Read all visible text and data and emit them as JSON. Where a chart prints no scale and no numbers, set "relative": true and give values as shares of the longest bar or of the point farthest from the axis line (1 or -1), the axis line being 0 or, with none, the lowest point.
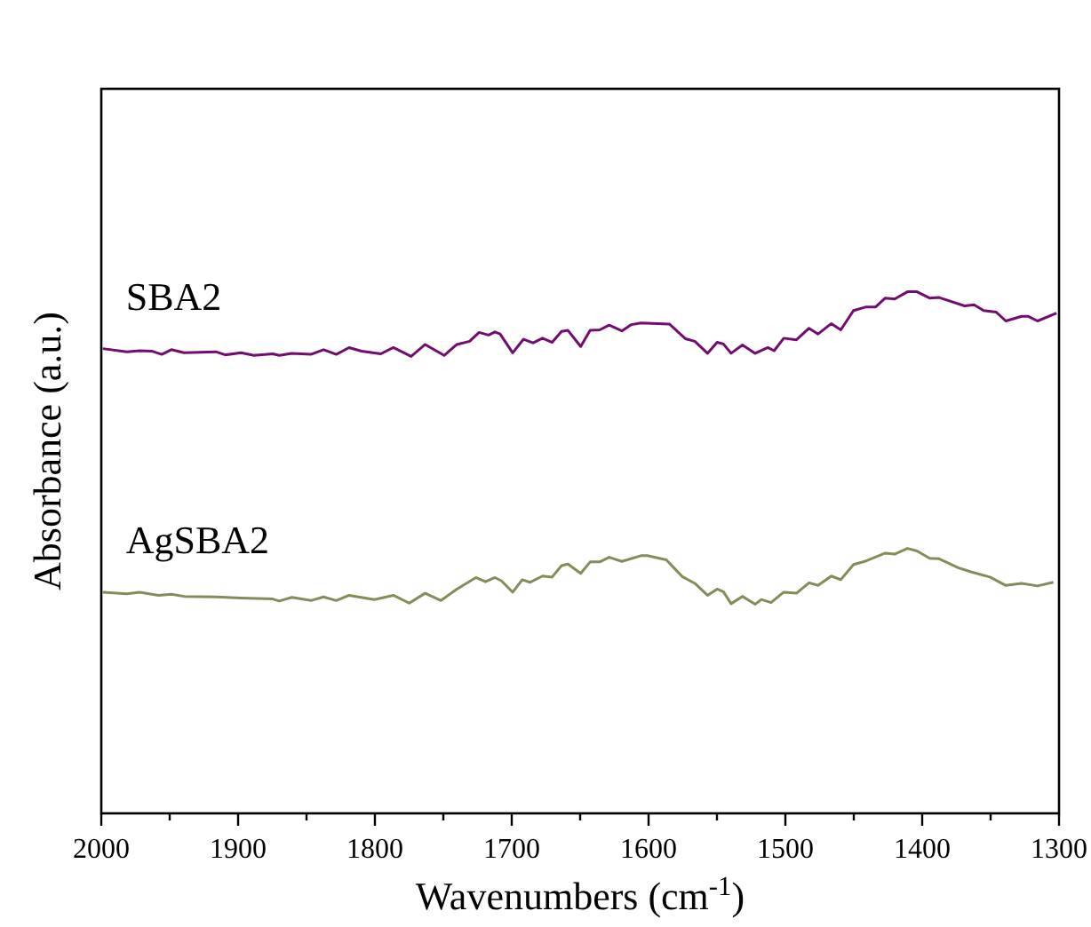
{
  "chart_data": {
    "type": "line",
    "relative": true,
    "xlabel": "Wavenumbers (cm$^{-1}$)",
    "ylabel": "Absorbance (a.u.)",
    "xlim": [
      2000,
      1300
    ],
    "xticks": [
      2000,
      {
        "value": 1950,
        "label": null
      },
      1900,
      {
        "value": 1850,
        "label": null
      },
      1800,
      {
        "value": 1750,
        "label": null
      },
      1700,
      {
        "value": 1650,
        "label": null
      },
      1600,
      {
        "value": 1550,
        "label": null
      },
      1500,
      {
        "value": 1450,
        "label": null
      },
      1400,
      {
        "value": 1350,
        "label": null
      },
      1300
    ],
    "grid": false,
    "marker": "none",
    "line_style": "solid",
    "series": [
      {
        "name": "SBA2",
        "color": "#730c70",
        "x": [
          1998.9,
          1981.3,
          1972.0,
          1962.7,
          1955.8,
          1948.8,
          1939.5,
          1916.3,
          1909.4,
          1897.8,
          1888.5,
          1874.6,
          1870.0,
          1860.7,
          1846.8,
          1837.5,
          1828.2,
          1818.9,
          1809.7,
          1795.7,
          1786.5,
          1773.5,
          1763.3,
          1749.4,
          1740.1,
          1730.8,
          1723.9,
          1716.9,
          1712.3,
          1708.5,
          1699.3,
          1691.4,
          1684.4,
          1677.5,
          1670.5,
          1663.6,
          1658.9,
          1649.6,
          1642.7,
          1635.7,
          1628.8,
          1619.5,
          1612.6,
          1605.6,
          1584.7,
          1573.1,
          1566.2,
          1556.9,
          1549.9,
          1545.3,
          1539.7,
          1531.4,
          1522.1,
          1512.8,
          1508.2,
          1501.2,
          1491.9,
          1482.7,
          1476.1,
          1466.4,
          1459.5,
          1450.2,
          1440.9,
          1434.0,
          1427.0,
          1420.1,
          1410.8,
          1403.8,
          1394.6,
          1387.6,
          1369.0,
          1362.1,
          1355.1,
          1345.9,
          1338.9,
          1327.3,
          1322.7,
          1315.7,
          1301.8
        ],
        "values": [
          0.891,
          0.885,
          0.887,
          0.886,
          0.88,
          0.889,
          0.883,
          0.885,
          0.879,
          0.883,
          0.878,
          0.881,
          0.878,
          0.882,
          0.88,
          0.889,
          0.88,
          0.893,
          0.886,
          0.881,
          0.893,
          0.876,
          0.899,
          0.878,
          0.899,
          0.905,
          0.922,
          0.917,
          0.923,
          0.919,
          0.883,
          0.909,
          0.902,
          0.911,
          0.903,
          0.924,
          0.926,
          0.895,
          0.926,
          0.927,
          0.936,
          0.925,
          0.937,
          0.94,
          0.938,
          0.91,
          0.905,
          0.882,
          0.903,
          0.9,
          0.882,
          0.898,
          0.882,
          0.893,
          0.887,
          0.911,
          0.908,
          0.93,
          0.919,
          0.939,
          0.927,
          0.964,
          0.971,
          0.971,
          0.988,
          0.986,
          1,
          1,
          0.988,
          0.989,
          0.973,
          0.975,
          0.964,
          0.961,
          0.944,
          0.953,
          0.953,
          0.944,
          0.959
        ]
      },
      {
        "name": "AgSBA2",
        "color": "#858c5a",
        "x": [
          1998.9,
          1981.3,
          1972.0,
          1958.1,
          1948.8,
          1939.5,
          1916.3,
          1897.8,
          1874.6,
          1870.0,
          1860.7,
          1846.8,
          1837.5,
          1828.2,
          1818.9,
          1800.4,
          1786.5,
          1774.9,
          1763.3,
          1751.7,
          1740.1,
          1726.2,
          1719.2,
          1712.3,
          1707.6,
          1699.3,
          1692.3,
          1686.7,
          1677.5,
          1670.5,
          1663.6,
          1658.9,
          1649.6,
          1642.7,
          1635.7,
          1628.8,
          1619.5,
          1605.6,
          1600.9,
          1587.0,
          1575.4,
          1566.2,
          1556.9,
          1549.9,
          1545.3,
          1539.7,
          1531.4,
          1522.1,
          1517.5,
          1510.5,
          1501.2,
          1491.9,
          1482.7,
          1476.1,
          1466.4,
          1459.5,
          1450.2,
          1440.9,
          1427.0,
          1420.1,
          1410.8,
          1403.8,
          1394.6,
          1387.6,
          1373.7,
          1364.4,
          1350.5,
          1338.9,
          1327.3,
          1315.7,
          1304.1
        ],
        "values": [
          0.424,
          0.421,
          0.424,
          0.418,
          0.42,
          0.416,
          0.415,
          0.413,
          0.411,
          0.407,
          0.414,
          0.408,
          0.415,
          0.408,
          0.418,
          0.41,
          0.418,
          0.403,
          0.422,
          0.408,
          0.43,
          0.452,
          0.444,
          0.452,
          0.446,
          0.424,
          0.448,
          0.443,
          0.455,
          0.453,
          0.475,
          0.478,
          0.46,
          0.482,
          0.482,
          0.491,
          0.483,
          0.494,
          0.494,
          0.486,
          0.454,
          0.441,
          0.418,
          0.43,
          0.425,
          0.402,
          0.416,
          0.401,
          0.41,
          0.404,
          0.424,
          0.422,
          0.442,
          0.437,
          0.455,
          0.448,
          0.477,
          0.484,
          0.499,
          0.497,
          0.508,
          0.503,
          0.489,
          0.488,
          0.471,
          0.463,
          0.453,
          0.437,
          0.441,
          0.436,
          0.443
        ]
      }
    ]
  }
}
